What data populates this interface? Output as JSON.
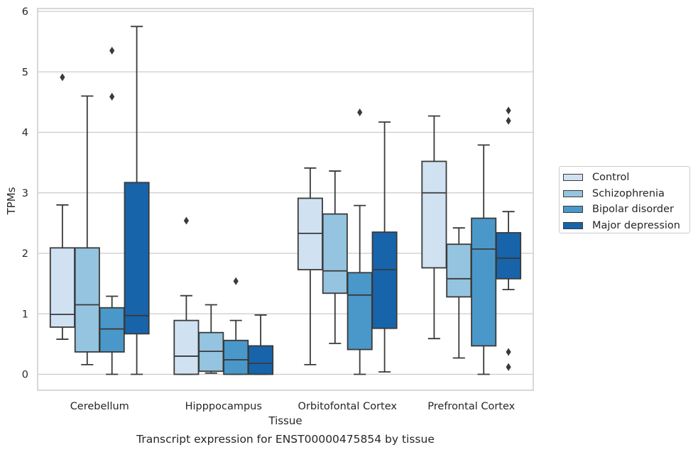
{
  "chart_data": {
    "type": "box",
    "title": "Transcript expression for ENST00000475854 by tissue",
    "xlabel": "Tissue",
    "ylabel": "TPMs",
    "ylim": [
      -0.27,
      6.05
    ],
    "yticks": [
      0,
      1,
      2,
      3,
      4,
      5,
      6
    ],
    "categories": [
      "Cerebellum",
      "Hipppocampus",
      "Orbitofontal Cortex",
      "Prefrontal Cortex"
    ],
    "grid": "horizontal",
    "legend_position": "right",
    "series": [
      {
        "name": "Control",
        "color": "#d0e1f2",
        "boxes": [
          {
            "whislo": 0.58,
            "q1": 0.78,
            "med": 0.99,
            "q3": 2.09,
            "whishi": 2.8,
            "fliers": [
              4.91
            ]
          },
          {
            "whislo": 0.0,
            "q1": 0.0,
            "med": 0.3,
            "q3": 0.89,
            "whishi": 1.3,
            "fliers": [
              2.54
            ]
          },
          {
            "whislo": 0.16,
            "q1": 1.73,
            "med": 2.33,
            "q3": 2.91,
            "whishi": 3.41,
            "fliers": []
          },
          {
            "whislo": 0.59,
            "q1": 1.76,
            "med": 3.0,
            "q3": 3.52,
            "whishi": 4.27,
            "fliers": []
          }
        ]
      },
      {
        "name": "Schizophrenia",
        "color": "#94c4df",
        "boxes": [
          {
            "whislo": 0.16,
            "q1": 0.37,
            "med": 1.15,
            "q3": 2.09,
            "whishi": 4.6,
            "fliers": []
          },
          {
            "whislo": 0.02,
            "q1": 0.05,
            "med": 0.38,
            "q3": 0.69,
            "whishi": 1.15,
            "fliers": []
          },
          {
            "whislo": 0.51,
            "q1": 1.34,
            "med": 1.71,
            "q3": 2.65,
            "whishi": 3.36,
            "fliers": []
          },
          {
            "whislo": 0.27,
            "q1": 1.28,
            "med": 1.58,
            "q3": 2.15,
            "whishi": 2.42,
            "fliers": []
          }
        ]
      },
      {
        "name": "Bipolar disorder",
        "color": "#4a98c9",
        "boxes": [
          {
            "whislo": 0.0,
            "q1": 0.37,
            "med": 0.75,
            "q3": 1.1,
            "whishi": 1.29,
            "fliers": [
              5.35,
              4.59
            ]
          },
          {
            "whislo": 0.0,
            "q1": 0.0,
            "med": 0.24,
            "q3": 0.56,
            "whishi": 0.89,
            "fliers": [
              1.54
            ]
          },
          {
            "whislo": 0.0,
            "q1": 0.41,
            "med": 1.31,
            "q3": 1.68,
            "whishi": 2.79,
            "fliers": [
              4.33
            ]
          },
          {
            "whislo": 0.0,
            "q1": 0.47,
            "med": 2.07,
            "q3": 2.58,
            "whishi": 3.79,
            "fliers": []
          }
        ]
      },
      {
        "name": "Major depression",
        "color": "#1764ab",
        "boxes": [
          {
            "whislo": 0.0,
            "q1": 0.67,
            "med": 0.97,
            "q3": 3.17,
            "whishi": 5.75,
            "fliers": []
          },
          {
            "whislo": 0.0,
            "q1": 0.0,
            "med": 0.18,
            "q3": 0.47,
            "whishi": 0.98,
            "fliers": []
          },
          {
            "whislo": 0.04,
            "q1": 0.76,
            "med": 1.73,
            "q3": 2.35,
            "whishi": 4.17,
            "fliers": []
          },
          {
            "whislo": 1.4,
            "q1": 1.58,
            "med": 1.92,
            "q3": 2.34,
            "whishi": 2.69,
            "fliers": [
              4.36,
              4.19,
              0.37,
              0.12
            ]
          }
        ]
      }
    ]
  }
}
